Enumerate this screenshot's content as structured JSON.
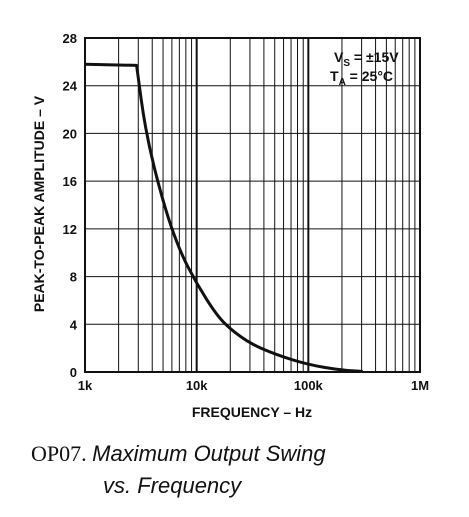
{
  "chart_data": {
    "type": "line",
    "xscale": "log",
    "xlim": [
      1000,
      1000000
    ],
    "ylim": [
      0,
      28
    ],
    "grid": true,
    "xlabel": "FREQUENCY – Hz",
    "ylabel": "PEAK-TO-PEAK AMPLITUDE – V",
    "x_ticks": [
      {
        "value": 1000,
        "label": "1k"
      },
      {
        "value": 10000,
        "label": "10k"
      },
      {
        "value": 100000,
        "label": "100k"
      },
      {
        "value": 1000000,
        "label": "1M"
      }
    ],
    "y_ticks": [
      {
        "value": 0,
        "label": "0"
      },
      {
        "value": 4,
        "label": "4"
      },
      {
        "value": 8,
        "label": "8"
      },
      {
        "value": 12,
        "label": "12"
      },
      {
        "value": 16,
        "label": "16"
      },
      {
        "value": 20,
        "label": "20"
      },
      {
        "value": 24,
        "label": "24"
      },
      {
        "value": 28,
        "label": "28"
      }
    ],
    "annotations": {
      "vs_main": "V",
      "vs_sub": "S",
      "vs_rest": " = ±15V",
      "ta_main": "T",
      "ta_sub": "A",
      "ta_rest": " = 25°C"
    },
    "series": [
      {
        "x": [
          1000,
          2900,
          3500,
          5000,
          7000,
          10000,
          15000,
          20000,
          30000,
          50000,
          100000,
          200000,
          300000
        ],
        "y": [
          25.8,
          25.7,
          20.0,
          14.2,
          10.2,
          7.4,
          4.8,
          3.6,
          2.4,
          1.5,
          0.6,
          0.15,
          0.05
        ]
      }
    ],
    "colors": {
      "line": "#111111",
      "grid": "#111111",
      "background": "#ffffff"
    }
  },
  "caption": {
    "part": "OP07.",
    "title_line1": "Maximum Output Swing",
    "title_line2": "vs. Frequency"
  }
}
